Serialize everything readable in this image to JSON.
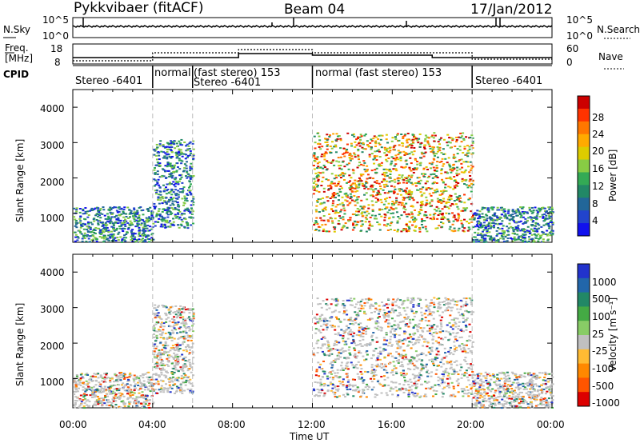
{
  "header": {
    "station": "Pykkvibaer (fitACF)",
    "beam": "Beam 04",
    "date": "17/Jan/2012"
  },
  "top_panel": {
    "nsky_label": "N.Sky",
    "nsky_ticks": [
      "10^5",
      "10^0"
    ],
    "nsky_right_ticks": [
      "10^5",
      "10^0"
    ],
    "nsearch_label": "N.Search",
    "freq_label_line1": "Freq.",
    "freq_label_line2": "[MHz]",
    "freq_ticks": [
      "18",
      "8"
    ],
    "nave_ticks": [
      "60",
      "0"
    ],
    "nave_label": "Nave",
    "cpid_label": "CPID",
    "cpid_segments": [
      {
        "text": "Stereo -6401",
        "start_hour": 0,
        "end_hour": 4
      },
      {
        "text": "normal",
        "start_hour": 4,
        "end_hour": 6
      },
      {
        "text": "(fast stereo) 153",
        "start_hour": 6,
        "end_hour": 12
      },
      {
        "text": "Stereo -6401",
        "start_hour": 6,
        "end_hour": 12
      },
      {
        "text": "normal (fast stereo) 153",
        "start_hour": 12,
        "end_hour": 20
      },
      {
        "text": "Stereo -6401",
        "start_hour": 20,
        "end_hour": 24
      }
    ]
  },
  "chart_data": [
    {
      "type": "heatmap",
      "title": "Power",
      "ylabel": "Slant Range [km]",
      "xlabel": "",
      "ylim": [
        180,
        4500
      ],
      "xlim": [
        0,
        24
      ],
      "yticks": [
        "4000",
        "3000",
        "2000",
        "1000"
      ],
      "colorbar": {
        "label": "Power [dB]",
        "ticks": [
          "28",
          "24",
          "20",
          "16",
          "12",
          "8",
          "4"
        ],
        "colors": [
          "#cc0000",
          "#ff3300",
          "#ff7700",
          "#ffaa00",
          "#ddcc00",
          "#88cc44",
          "#33aa55",
          "#228866",
          "#226699",
          "#2244cc",
          "#1111ee"
        ]
      },
      "regions": [
        {
          "x0": 0,
          "x1": 4,
          "y0": 200,
          "y1": 1200,
          "level": "low"
        },
        {
          "x0": 4,
          "x1": 6,
          "y0": 600,
          "y1": 3100,
          "level": "mid"
        },
        {
          "x0": 12,
          "x1": 20,
          "y0": 500,
          "y1": 3300,
          "level": "high"
        },
        {
          "x0": 20,
          "x1": 24,
          "y0": 200,
          "y1": 1200,
          "level": "low"
        }
      ]
    },
    {
      "type": "heatmap",
      "title": "Velocity",
      "ylabel": "Slant Range [km]",
      "xlabel": "Time UT",
      "ylim": [
        180,
        4500
      ],
      "xlim": [
        0,
        24
      ],
      "yticks": [
        "4000",
        "3000",
        "2000",
        "1000"
      ],
      "xticks": [
        "00:00",
        "04:00",
        "08:00",
        "12:00",
        "16:00",
        "20:00",
        "00:00"
      ],
      "colorbar": {
        "label": "Velocity [m s⁻¹]",
        "ticks": [
          "1000",
          "500",
          "100",
          "25",
          "-25",
          "-100",
          "-500",
          "-1000"
        ],
        "colors": [
          "#2233cc",
          "#2266aa",
          "#228866",
          "#44aa44",
          "#88cc66",
          "#c0c0c0",
          "#ffbb33",
          "#ff8800",
          "#ff5500",
          "#dd0000"
        ]
      },
      "regions": [
        {
          "x0": 0,
          "x1": 4,
          "y0": 200,
          "y1": 1200
        },
        {
          "x0": 4,
          "x1": 6,
          "y0": 600,
          "y1": 3100
        },
        {
          "x0": 12,
          "x1": 20,
          "y0": 500,
          "y1": 3300
        },
        {
          "x0": 20,
          "x1": 24,
          "y0": 200,
          "y1": 1200
        }
      ]
    }
  ]
}
